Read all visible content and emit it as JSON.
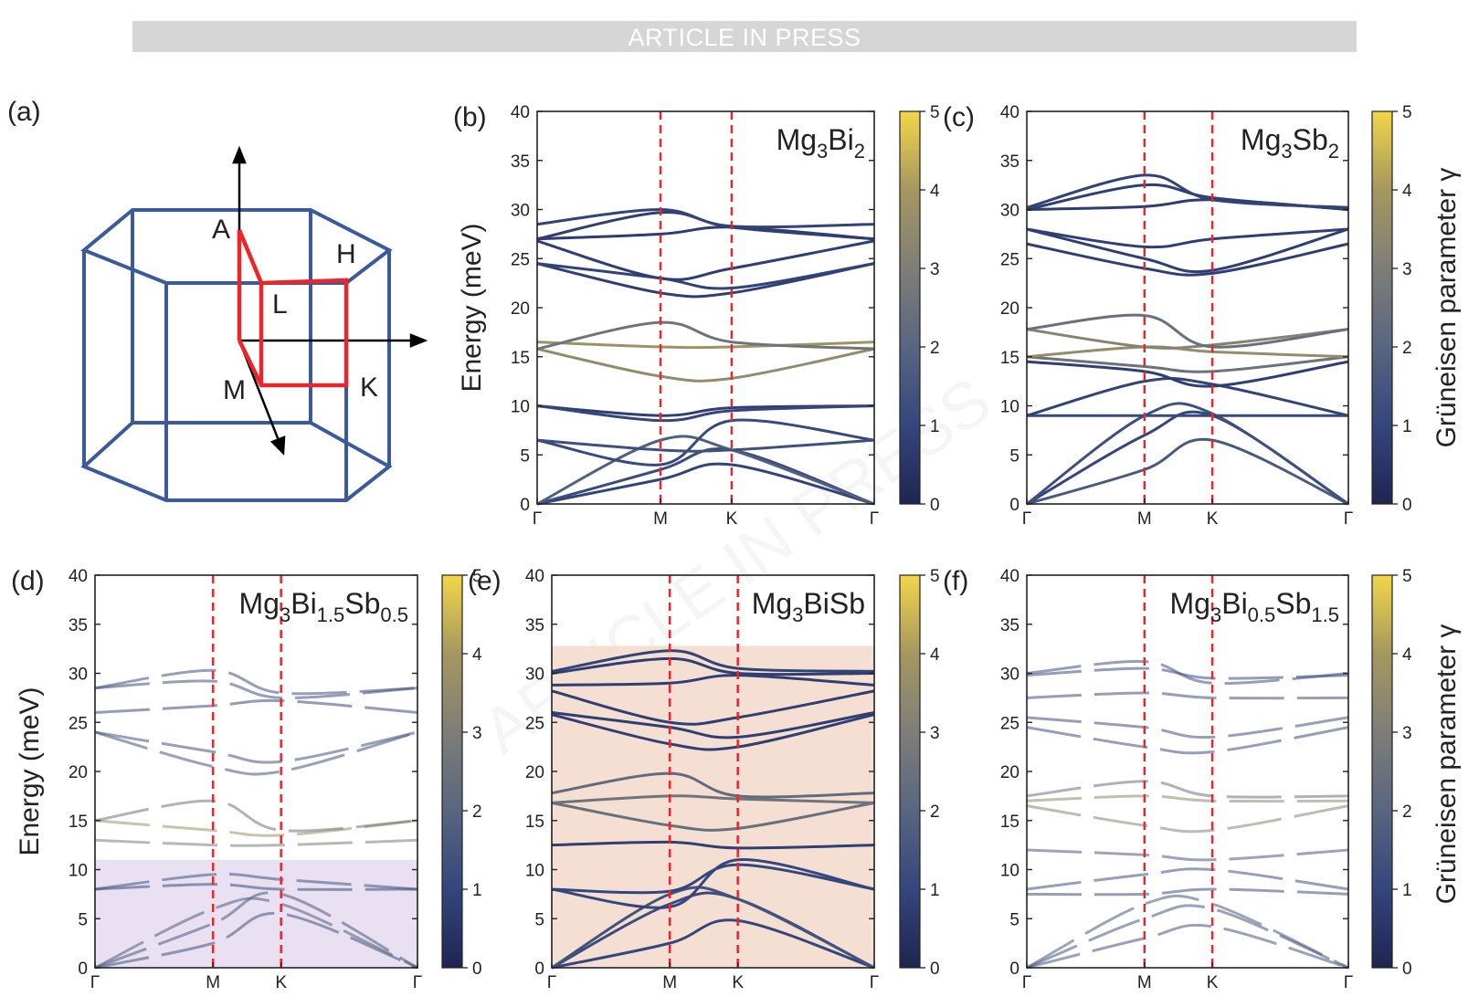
{
  "banner": "ARTICLE IN PRESS",
  "watermark": "ARTICLE IN PRESS",
  "panel_a": {
    "label": "(a)",
    "points": [
      "A",
      "H",
      "L",
      "M",
      "K"
    ]
  },
  "colorbar": {
    "label": "Grüneisen parameter γ",
    "ticks": [
      "0",
      "1",
      "2",
      "3",
      "4",
      "5"
    ],
    "range": [
      0,
      5
    ],
    "colors": [
      "#1f2550",
      "#34467c",
      "#586680",
      "#7e7e78",
      "#a5975f",
      "#f2d649"
    ]
  },
  "colors": {
    "hs_line": "#e8262b",
    "bz_edge": "#3a5a9b",
    "bz_path": "#e8262b"
  },
  "chart_data": [
    {
      "id": "b",
      "label": "(b)",
      "type": "line",
      "material": [
        "Mg",
        "3",
        "Bi",
        "2"
      ],
      "ylabel": "Energy (meV)",
      "ylim": [
        0,
        40
      ],
      "yticks": [
        "0",
        "5",
        "10",
        "15",
        "20",
        "25",
        "30",
        "35",
        "40"
      ],
      "xticks": [
        "Γ",
        "M",
        "K",
        "Γ"
      ],
      "x": [
        0,
        0.366,
        0.577,
        1.0
      ],
      "series": [
        {
          "values": [
            0,
            2.5,
            4.0,
            0
          ],
          "gamma": 0.9
        },
        {
          "values": [
            0,
            3.5,
            5.5,
            0
          ],
          "gamma": 1.2
        },
        {
          "values": [
            0,
            6.5,
            5.5,
            0
          ],
          "gamma": 1.8
        },
        {
          "values": [
            6.5,
            4.0,
            8.5,
            6.5
          ],
          "gamma": 1.1
        },
        {
          "values": [
            6.5,
            5.5,
            5.5,
            6.5
          ],
          "gamma": 1.3
        },
        {
          "values": [
            10.0,
            9.0,
            9.8,
            10.0
          ],
          "gamma": 0.8
        },
        {
          "values": [
            10.0,
            8.5,
            9.5,
            10.0
          ],
          "gamma": 1.0
        },
        {
          "values": [
            15.8,
            13.0,
            12.8,
            15.8
          ],
          "gamma": 3.5
        },
        {
          "values": [
            16.5,
            16.0,
            16.0,
            16.5
          ],
          "gamma": 3.8
        },
        {
          "values": [
            15.8,
            18.5,
            16.5,
            15.8
          ],
          "gamma": 2.6
        },
        {
          "values": [
            24.5,
            21.5,
            21.5,
            24.5
          ],
          "gamma": 0.8
        },
        {
          "values": [
            24.5,
            23.0,
            22.0,
            24.5
          ],
          "gamma": 0.9
        },
        {
          "values": [
            26.8,
            23.0,
            24.0,
            26.8
          ],
          "gamma": 0.8
        },
        {
          "values": [
            27.0,
            27.5,
            28.2,
            27.0
          ],
          "gamma": 0.7
        },
        {
          "values": [
            27.0,
            29.7,
            28.2,
            27.0
          ],
          "gamma": 0.8
        },
        {
          "values": [
            28.5,
            30.0,
            28.3,
            28.5
          ],
          "gamma": 0.9
        }
      ]
    },
    {
      "id": "c",
      "label": "(c)",
      "type": "line",
      "material": [
        "Mg",
        "3",
        "Sb",
        "2"
      ],
      "ylim": [
        0,
        40
      ],
      "yticks": [
        "0",
        "5",
        "10",
        "15",
        "20",
        "25",
        "30",
        "35",
        "40"
      ],
      "xticks": [
        "Γ",
        "M",
        "K",
        "Γ"
      ],
      "x": [
        0,
        0.366,
        0.577,
        1.0
      ],
      "series": [
        {
          "values": [
            0,
            3.5,
            6.5,
            0
          ],
          "gamma": 1.6
        },
        {
          "values": [
            0,
            7.0,
            9.0,
            0
          ],
          "gamma": 1.0
        },
        {
          "values": [
            0,
            9.0,
            9.2,
            0
          ],
          "gamma": 1.3
        },
        {
          "values": [
            9.0,
            9.0,
            9.0,
            9.0
          ],
          "gamma": 1.1
        },
        {
          "values": [
            9.0,
            12.5,
            12.2,
            9.0
          ],
          "gamma": 0.9
        },
        {
          "values": [
            14.5,
            13.5,
            12.0,
            14.5
          ],
          "gamma": 0.8
        },
        {
          "values": [
            15.0,
            14.0,
            13.5,
            15.0
          ],
          "gamma": 2.5
        },
        {
          "values": [
            15.0,
            16.0,
            15.5,
            15.0
          ],
          "gamma": 3.6
        },
        {
          "values": [
            17.8,
            16.0,
            16.2,
            17.8
          ],
          "gamma": 3.2
        },
        {
          "values": [
            17.8,
            19.2,
            16.0,
            17.8
          ],
          "gamma": 2.4
        },
        {
          "values": [
            26.5,
            24.0,
            23.5,
            26.5
          ],
          "gamma": 0.8
        },
        {
          "values": [
            28.0,
            25.0,
            23.8,
            28.0
          ],
          "gamma": 0.8
        },
        {
          "values": [
            28.0,
            26.2,
            27.0,
            28.0
          ],
          "gamma": 0.8
        },
        {
          "values": [
            30.0,
            30.3,
            31.0,
            30.0
          ],
          "gamma": 0.7
        },
        {
          "values": [
            30.0,
            32.5,
            31.2,
            30.0
          ],
          "gamma": 0.8
        },
        {
          "values": [
            30.2,
            33.5,
            31.0,
            30.2
          ],
          "gamma": 0.9
        }
      ]
    },
    {
      "id": "d",
      "label": "(d)",
      "type": "line",
      "material": [
        "Mg",
        "3",
        "Bi",
        "1.5",
        "Sb",
        "0.5"
      ],
      "ylabel": "Energy (meV)",
      "ylim": [
        0,
        40
      ],
      "yticks": [
        "0",
        "5",
        "10",
        "15",
        "20",
        "25",
        "30",
        "35",
        "40"
      ],
      "xticks": [
        "Γ",
        "M",
        "K",
        "Γ"
      ],
      "x": [
        0,
        0.366,
        0.577,
        1.0
      ],
      "shade": {
        "from": 0,
        "to": 11,
        "color": "#e9e1f1"
      },
      "series": [
        {
          "values": [
            0,
            2.5,
            5.5,
            0
          ],
          "gamma": 1.4
        },
        {
          "values": [
            0,
            4.5,
            7.5,
            0
          ],
          "gamma": 1.6
        },
        {
          "values": [
            0,
            6.0,
            6.5,
            0
          ],
          "gamma": 1.8
        },
        {
          "values": [
            8.0,
            8.5,
            8.0,
            8.0
          ],
          "gamma": 1.2
        },
        {
          "values": [
            8.0,
            9.5,
            9.0,
            8.0
          ],
          "gamma": 1.4
        },
        {
          "values": [
            13.0,
            12.5,
            12.5,
            13.0
          ],
          "gamma": 3.0
        },
        {
          "values": [
            15.0,
            14.0,
            13.5,
            15.0
          ],
          "gamma": 3.8
        },
        {
          "values": [
            15.0,
            17.0,
            14.0,
            15.0
          ],
          "gamma": 2.6
        },
        {
          "values": [
            24.0,
            20.5,
            20.0,
            24.0
          ],
          "gamma": 1.4
        },
        {
          "values": [
            24.0,
            22.0,
            21.0,
            24.0
          ],
          "gamma": 1.4
        },
        {
          "values": [
            26.0,
            26.7,
            27.2,
            26.0
          ],
          "gamma": 1.2
        },
        {
          "values": [
            28.5,
            29.2,
            27.5,
            28.5
          ],
          "gamma": 1.3
        },
        {
          "values": [
            28.5,
            30.3,
            28.0,
            28.5
          ],
          "gamma": 1.3
        }
      ]
    },
    {
      "id": "e",
      "label": "(e)",
      "type": "line",
      "material": [
        "Mg",
        "3",
        "BiSb",
        ""
      ],
      "ylim": [
        0,
        40
      ],
      "yticks": [
        "0",
        "5",
        "10",
        "15",
        "20",
        "25",
        "30",
        "35",
        "40"
      ],
      "xticks": [
        "Γ",
        "M",
        "K",
        "Γ"
      ],
      "x": [
        0,
        0.366,
        0.577,
        1.0
      ],
      "shade": {
        "from": 0,
        "to": 32.8,
        "color": "#f5dfd3"
      },
      "series": [
        {
          "values": [
            0,
            2.5,
            4.8,
            0
          ],
          "gamma": 1.0
        },
        {
          "values": [
            0,
            6.5,
            7.0,
            0
          ],
          "gamma": 1.2
        },
        {
          "values": [
            0,
            7.5,
            7.0,
            0
          ],
          "gamma": 1.4
        },
        {
          "values": [
            8.0,
            6.2,
            11.0,
            8.0
          ],
          "gamma": 1.0
        },
        {
          "values": [
            8.0,
            7.8,
            10.5,
            8.0
          ],
          "gamma": 1.0
        },
        {
          "values": [
            12.5,
            12.8,
            12.2,
            12.5
          ],
          "gamma": 0.8
        },
        {
          "values": [
            16.8,
            14.5,
            14.2,
            16.8
          ],
          "gamma": 2.4
        },
        {
          "values": [
            16.8,
            17.5,
            17.2,
            16.8
          ],
          "gamma": 2.6
        },
        {
          "values": [
            17.8,
            19.8,
            17.5,
            17.8
          ],
          "gamma": 2.2
        },
        {
          "values": [
            25.8,
            22.8,
            22.5,
            25.8
          ],
          "gamma": 0.8
        },
        {
          "values": [
            26.0,
            24.5,
            23.5,
            26.0
          ],
          "gamma": 0.8
        },
        {
          "values": [
            28.2,
            25.0,
            25.5,
            28.2
          ],
          "gamma": 0.8
        },
        {
          "values": [
            28.8,
            29.0,
            29.8,
            28.8
          ],
          "gamma": 0.8
        },
        {
          "values": [
            30.0,
            31.5,
            30.0,
            30.0
          ],
          "gamma": 0.8
        },
        {
          "values": [
            30.2,
            32.3,
            30.5,
            30.2
          ],
          "gamma": 0.9
        }
      ]
    },
    {
      "id": "f",
      "label": "(f)",
      "type": "line",
      "material": [
        "Mg",
        "3",
        "Bi",
        "0.5",
        "Sb",
        "1.5"
      ],
      "ylim": [
        0,
        40
      ],
      "yticks": [
        "0",
        "5",
        "10",
        "15",
        "20",
        "25",
        "30",
        "35",
        "40"
      ],
      "xticks": [
        "Γ",
        "M",
        "K",
        "Γ"
      ],
      "x": [
        0,
        0.366,
        0.577,
        1.0
      ],
      "series": [
        {
          "values": [
            0,
            3.0,
            4.2,
            0
          ],
          "gamma": 1.5
        },
        {
          "values": [
            0,
            5.0,
            6.0,
            0
          ],
          "gamma": 1.5
        },
        {
          "values": [
            0,
            6.5,
            6.5,
            0
          ],
          "gamma": 1.6
        },
        {
          "values": [
            7.5,
            7.5,
            8.0,
            7.5
          ],
          "gamma": 1.3
        },
        {
          "values": [
            8.0,
            9.5,
            10.0,
            8.0
          ],
          "gamma": 1.3
        },
        {
          "values": [
            12.0,
            11.5,
            11.0,
            12.0
          ],
          "gamma": 1.6
        },
        {
          "values": [
            16.5,
            14.5,
            14.0,
            16.5
          ],
          "gamma": 3.2
        },
        {
          "values": [
            17.0,
            17.5,
            17.0,
            17.0
          ],
          "gamma": 3.4
        },
        {
          "values": [
            17.5,
            19.0,
            17.5,
            17.5
          ],
          "gamma": 2.5
        },
        {
          "values": [
            24.5,
            22.5,
            22.0,
            24.5
          ],
          "gamma": 1.3
        },
        {
          "values": [
            25.5,
            24.5,
            23.5,
            25.5
          ],
          "gamma": 1.3
        },
        {
          "values": [
            27.5,
            28.0,
            27.5,
            27.5
          ],
          "gamma": 1.3
        },
        {
          "values": [
            29.8,
            30.5,
            29.5,
            29.8
          ],
          "gamma": 1.2
        },
        {
          "values": [
            30.0,
            31.2,
            29.0,
            30.0
          ],
          "gamma": 1.3
        }
      ]
    }
  ]
}
